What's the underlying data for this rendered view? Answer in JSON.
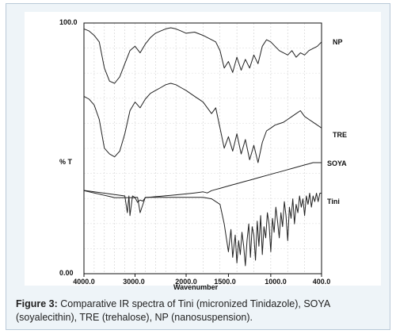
{
  "caption": {
    "label": "Figure 3:",
    "text": "Comparative IR spectra of Tini (micronized Tinidazole), SOYA (soyalecithin), TRE (trehalose), NP (nanosuspension)."
  },
  "chart_data": {
    "type": "line",
    "xlabel": "Wavenumber",
    "ylabel": "% T",
    "xlim": [
      4000,
      400
    ],
    "ylim": [
      0,
      100
    ],
    "y_tick_labels": [
      "100.0",
      "0.00"
    ],
    "x_tick_labels": [
      "4000.0",
      "3000.0",
      "2000.0",
      "1500.0",
      "1000.0",
      "400.0"
    ],
    "grid": true,
    "series": [
      {
        "name": "NP",
        "x": [
          4000,
          3900,
          3800,
          3700,
          3600,
          3500,
          3400,
          3300,
          3200,
          3100,
          3000,
          2900,
          2800,
          2700,
          2600,
          2500,
          2400,
          2300,
          2200,
          2100,
          2000,
          1900,
          1800,
          1700,
          1650,
          1600,
          1550,
          1500,
          1450,
          1400,
          1350,
          1300,
          1250,
          1200,
          1150,
          1100,
          1050,
          1000,
          950,
          900,
          850,
          800,
          750,
          700,
          650,
          600,
          550,
          500,
          450,
          400
        ],
        "y": [
          98,
          97,
          95,
          92,
          80,
          74,
          73,
          76,
          82,
          88,
          90,
          87,
          91,
          94,
          96,
          97,
          98,
          98.5,
          98,
          97,
          96,
          96.5,
          95,
          93,
          92,
          88,
          80,
          83,
          78,
          85,
          79,
          84,
          80,
          86,
          82,
          90,
          93,
          92,
          90,
          88,
          87,
          86,
          88,
          85,
          87,
          86,
          88,
          89,
          90,
          92
        ]
      },
      {
        "name": "TRE",
        "x": [
          4000,
          3900,
          3800,
          3700,
          3600,
          3500,
          3400,
          3300,
          3200,
          3100,
          3000,
          2900,
          2800,
          2700,
          2600,
          2500,
          2400,
          2300,
          2200,
          2100,
          2000,
          1900,
          1800,
          1700,
          1650,
          1600,
          1550,
          1500,
          1450,
          1400,
          1350,
          1300,
          1250,
          1200,
          1150,
          1100,
          1050,
          1000,
          950,
          900,
          850,
          800,
          750,
          700,
          650,
          600,
          550,
          500,
          450,
          400
        ],
        "y": [
          68,
          67,
          65,
          60,
          50,
          48,
          47,
          49,
          55,
          63,
          66,
          64,
          67,
          69,
          70,
          71,
          72,
          72.5,
          72,
          71,
          70,
          68,
          66,
          62,
          64,
          57,
          50,
          54,
          49,
          55,
          48,
          53,
          46,
          51,
          45,
          52,
          56,
          57,
          58,
          58.5,
          59,
          60,
          61,
          62,
          63,
          61,
          60,
          59,
          58,
          57
        ]
      },
      {
        "name": "SOYA",
        "x": [
          4000,
          3900,
          3800,
          3700,
          3600,
          3500,
          3400,
          3300,
          3200,
          3100,
          3000,
          2950,
          2900,
          2850,
          2800,
          2700,
          2600,
          2500,
          2400,
          2300,
          2200,
          2100,
          2000,
          1900,
          1800,
          1750,
          1700,
          1650,
          1600,
          1550,
          1500,
          1450,
          1400,
          1350,
          1300,
          1250,
          1200,
          1150,
          1100,
          1050,
          1000,
          950,
          900,
          850,
          800,
          750,
          700,
          650,
          600,
          550,
          500,
          450,
          400
        ],
        "y": [
          37,
          36.5,
          36,
          35.5,
          35,
          34.5,
          34,
          34,
          34,
          34,
          34,
          32,
          33,
          32.5,
          34,
          34.2,
          34.4,
          34.6,
          34.8,
          35,
          35.2,
          35.4,
          35.6,
          36,
          36.5,
          36,
          37,
          37.5,
          38,
          38.5,
          39,
          39.5,
          40,
          40.5,
          41,
          41.5,
          42,
          42.5,
          43,
          43.5,
          44,
          44.5,
          45,
          45.5,
          46,
          46.5,
          47,
          47.5,
          48,
          48.5,
          49,
          49,
          49
        ]
      },
      {
        "name": "Tini",
        "x": [
          4000,
          3800,
          3600,
          3400,
          3200,
          3150,
          3120,
          3100,
          3050,
          3000,
          2950,
          2900,
          2800,
          2700,
          2600,
          2500,
          2400,
          2300,
          2200,
          2100,
          2000,
          1900,
          1800,
          1700,
          1600,
          1550,
          1520,
          1500,
          1470,
          1450,
          1420,
          1400,
          1380,
          1360,
          1340,
          1320,
          1300,
          1280,
          1260,
          1240,
          1220,
          1200,
          1180,
          1160,
          1140,
          1120,
          1100,
          1080,
          1060,
          1040,
          1020,
          1000,
          980,
          960,
          940,
          920,
          900,
          880,
          860,
          840,
          820,
          800,
          780,
          760,
          740,
          720,
          700,
          680,
          660,
          640,
          620,
          600,
          580,
          560,
          540,
          520,
          500,
          480,
          460,
          440,
          420,
          400
        ],
        "y": [
          30,
          29.5,
          29,
          28.5,
          28,
          22,
          28,
          21,
          28,
          27.5,
          27.5,
          22,
          27.5,
          27.5,
          27.5,
          27.5,
          27.5,
          27.5,
          27.5,
          27.5,
          27.5,
          27.5,
          27.5,
          27,
          25,
          18,
          12,
          8,
          16,
          6,
          14,
          4,
          12,
          7,
          15,
          10,
          3,
          12,
          18,
          6,
          17,
          14,
          5,
          19,
          10,
          21,
          7,
          17,
          13,
          22,
          18,
          8,
          20,
          15,
          24,
          19,
          13,
          22,
          17,
          26,
          21,
          12,
          24,
          20,
          27,
          18,
          25,
          22,
          28,
          24,
          27,
          21,
          28,
          25,
          29,
          24,
          28,
          26,
          29,
          26,
          29,
          29
        ]
      }
    ]
  }
}
